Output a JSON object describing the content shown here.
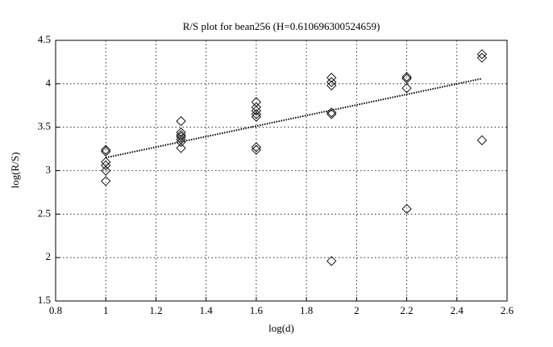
{
  "chart_data": {
    "type": "scatter",
    "title": "R/S plot for bean256 (H=0.610696300524659)",
    "x_label": "log(d)",
    "y_label": "log(R/S)",
    "x": [
      1,
      1,
      1,
      1,
      1,
      1,
      1.3,
      1.3,
      1.3,
      1.3,
      1.3,
      1.3,
      1.3,
      1.6,
      1.6,
      1.6,
      1.6,
      1.6,
      1.6,
      1.6,
      1.9,
      1.9,
      1.9,
      1.9,
      1.9,
      1.9,
      2.2,
      2.2,
      2.2,
      2.2,
      2.5,
      2.5,
      2.5
    ],
    "values": [
      3.24,
      3.22,
      3.1,
      3.06,
      3.0,
      2.88,
      3.57,
      3.44,
      3.41,
      3.39,
      3.36,
      3.33,
      3.26,
      3.79,
      3.73,
      3.69,
      3.65,
      3.62,
      3.27,
      3.24,
      4.07,
      4.02,
      3.98,
      3.67,
      3.65,
      1.96,
      4.08,
      4.06,
      3.95,
      2.56,
      4.34,
      4.3,
      3.35
    ],
    "marker_color": "#000000",
    "trend_line": {
      "x": [
        1,
        2.5
      ],
      "values": [
        3.15,
        4.06
      ],
      "color": "#000000"
    },
    "xlim": [
      0.8,
      2.6
    ],
    "xticks": [
      0.8,
      1,
      1.2,
      1.4,
      1.6,
      1.8,
      2,
      2.2,
      2.4,
      2.6
    ],
    "ylim": [
      1.5,
      4.5
    ],
    "yticks": [
      1.5,
      2,
      2.5,
      3,
      3.5,
      4,
      4.5
    ],
    "grid": true
  }
}
